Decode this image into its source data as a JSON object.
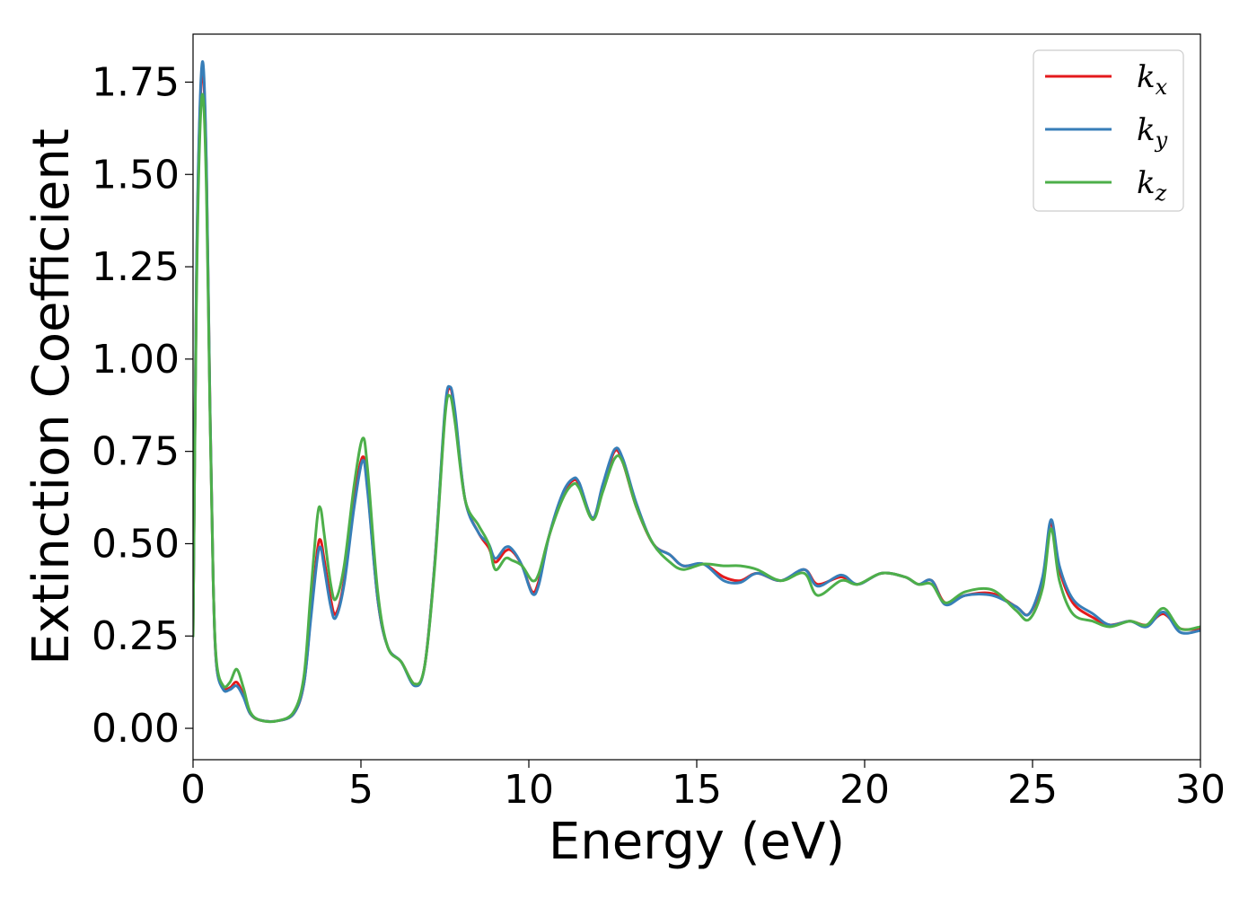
{
  "chart_data": {
    "type": "line",
    "title": "",
    "xlabel": "Energy (eV)",
    "ylabel": "Extinction Coefficient",
    "xlim": [
      0,
      30
    ],
    "ylim": [
      -0.085,
      1.88
    ],
    "xticks": [
      0,
      5,
      10,
      15,
      20,
      25,
      30
    ],
    "xtick_labels": [
      "0",
      "5",
      "10",
      "15",
      "20",
      "25",
      "30"
    ],
    "yticks": [
      0.0,
      0.25,
      0.5,
      0.75,
      1.0,
      1.25,
      1.5,
      1.75
    ],
    "ytick_labels": [
      "0.00",
      "0.25",
      "0.50",
      "0.75",
      "1.00",
      "1.25",
      "1.50",
      "1.75"
    ],
    "grid": false,
    "legend_position": "top-right",
    "series": [
      {
        "name": "k_x",
        "label_main": "k",
        "label_sub": "x",
        "color": "#e41a1c",
        "points": [
          [
            0,
            0.25
          ],
          [
            0.1,
            1.2
          ],
          [
            0.2,
            1.65
          ],
          [
            0.3,
            1.78
          ],
          [
            0.4,
            1.5
          ],
          [
            0.5,
            0.9
          ],
          [
            0.6,
            0.4
          ],
          [
            0.7,
            0.17
          ],
          [
            0.9,
            0.11
          ],
          [
            1.1,
            0.11
          ],
          [
            1.3,
            0.125
          ],
          [
            1.5,
            0.09
          ],
          [
            1.7,
            0.04
          ],
          [
            2.0,
            0.022
          ],
          [
            2.5,
            0.02
          ],
          [
            3.0,
            0.04
          ],
          [
            3.3,
            0.12
          ],
          [
            3.5,
            0.3
          ],
          [
            3.7,
            0.48
          ],
          [
            3.8,
            0.51
          ],
          [
            3.9,
            0.46
          ],
          [
            4.1,
            0.35
          ],
          [
            4.25,
            0.31
          ],
          [
            4.5,
            0.4
          ],
          [
            4.8,
            0.62
          ],
          [
            5.05,
            0.735
          ],
          [
            5.2,
            0.65
          ],
          [
            5.5,
            0.35
          ],
          [
            5.8,
            0.22
          ],
          [
            6.2,
            0.18
          ],
          [
            6.6,
            0.12
          ],
          [
            6.9,
            0.17
          ],
          [
            7.2,
            0.45
          ],
          [
            7.5,
            0.85
          ],
          [
            7.65,
            0.92
          ],
          [
            7.8,
            0.85
          ],
          [
            8.1,
            0.62
          ],
          [
            8.5,
            0.53
          ],
          [
            8.8,
            0.49
          ],
          [
            9.0,
            0.45
          ],
          [
            9.3,
            0.48
          ],
          [
            9.5,
            0.48
          ],
          [
            9.8,
            0.44
          ],
          [
            10.1,
            0.37
          ],
          [
            10.3,
            0.4
          ],
          [
            10.6,
            0.52
          ],
          [
            11.0,
            0.63
          ],
          [
            11.3,
            0.67
          ],
          [
            11.5,
            0.66
          ],
          [
            11.9,
            0.57
          ],
          [
            12.2,
            0.65
          ],
          [
            12.55,
            0.75
          ],
          [
            12.8,
            0.72
          ],
          [
            13.2,
            0.6
          ],
          [
            13.7,
            0.5
          ],
          [
            14.2,
            0.47
          ],
          [
            14.6,
            0.44
          ],
          [
            15.2,
            0.445
          ],
          [
            15.8,
            0.41
          ],
          [
            16.3,
            0.4
          ],
          [
            16.8,
            0.42
          ],
          [
            17.5,
            0.4
          ],
          [
            18.2,
            0.43
          ],
          [
            18.6,
            0.39
          ],
          [
            19.3,
            0.41
          ],
          [
            19.8,
            0.39
          ],
          [
            20.5,
            0.42
          ],
          [
            21.2,
            0.41
          ],
          [
            21.6,
            0.39
          ],
          [
            22.0,
            0.4
          ],
          [
            22.4,
            0.34
          ],
          [
            23.0,
            0.36
          ],
          [
            23.8,
            0.365
          ],
          [
            24.5,
            0.33
          ],
          [
            24.9,
            0.31
          ],
          [
            25.3,
            0.4
          ],
          [
            25.55,
            0.555
          ],
          [
            25.8,
            0.43
          ],
          [
            26.2,
            0.34
          ],
          [
            26.8,
            0.3
          ],
          [
            27.3,
            0.28
          ],
          [
            27.9,
            0.29
          ],
          [
            28.4,
            0.28
          ],
          [
            28.9,
            0.31
          ],
          [
            29.4,
            0.27
          ],
          [
            30,
            0.27
          ]
        ]
      },
      {
        "name": "k_y",
        "label_main": "k",
        "label_sub": "y",
        "color": "#377eb8",
        "points": [
          [
            0,
            0.25
          ],
          [
            0.1,
            1.22
          ],
          [
            0.2,
            1.67
          ],
          [
            0.3,
            1.8
          ],
          [
            0.4,
            1.52
          ],
          [
            0.5,
            0.9
          ],
          [
            0.6,
            0.4
          ],
          [
            0.7,
            0.17
          ],
          [
            0.9,
            0.105
          ],
          [
            1.1,
            0.105
          ],
          [
            1.3,
            0.115
          ],
          [
            1.5,
            0.085
          ],
          [
            1.7,
            0.04
          ],
          [
            2.0,
            0.022
          ],
          [
            2.5,
            0.02
          ],
          [
            3.0,
            0.04
          ],
          [
            3.3,
            0.12
          ],
          [
            3.5,
            0.29
          ],
          [
            3.7,
            0.46
          ],
          [
            3.8,
            0.49
          ],
          [
            3.9,
            0.44
          ],
          [
            4.1,
            0.33
          ],
          [
            4.25,
            0.3
          ],
          [
            4.5,
            0.39
          ],
          [
            4.8,
            0.6
          ],
          [
            5.05,
            0.725
          ],
          [
            5.2,
            0.64
          ],
          [
            5.5,
            0.35
          ],
          [
            5.8,
            0.22
          ],
          [
            6.2,
            0.18
          ],
          [
            6.6,
            0.115
          ],
          [
            6.9,
            0.17
          ],
          [
            7.2,
            0.45
          ],
          [
            7.5,
            0.86
          ],
          [
            7.65,
            0.925
          ],
          [
            7.8,
            0.86
          ],
          [
            8.1,
            0.62
          ],
          [
            8.5,
            0.53
          ],
          [
            8.8,
            0.5
          ],
          [
            9.0,
            0.46
          ],
          [
            9.3,
            0.49
          ],
          [
            9.5,
            0.485
          ],
          [
            9.8,
            0.44
          ],
          [
            10.1,
            0.365
          ],
          [
            10.3,
            0.39
          ],
          [
            10.6,
            0.52
          ],
          [
            11.0,
            0.635
          ],
          [
            11.3,
            0.675
          ],
          [
            11.5,
            0.665
          ],
          [
            11.9,
            0.57
          ],
          [
            12.2,
            0.66
          ],
          [
            12.55,
            0.755
          ],
          [
            12.8,
            0.73
          ],
          [
            13.2,
            0.61
          ],
          [
            13.7,
            0.5
          ],
          [
            14.2,
            0.47
          ],
          [
            14.6,
            0.44
          ],
          [
            15.2,
            0.445
          ],
          [
            15.8,
            0.4
          ],
          [
            16.3,
            0.395
          ],
          [
            16.8,
            0.42
          ],
          [
            17.5,
            0.4
          ],
          [
            18.2,
            0.43
          ],
          [
            18.6,
            0.385
          ],
          [
            19.3,
            0.415
          ],
          [
            19.8,
            0.39
          ],
          [
            20.5,
            0.42
          ],
          [
            21.2,
            0.41
          ],
          [
            21.6,
            0.39
          ],
          [
            22.0,
            0.4
          ],
          [
            22.4,
            0.335
          ],
          [
            23.0,
            0.36
          ],
          [
            23.8,
            0.36
          ],
          [
            24.5,
            0.33
          ],
          [
            24.9,
            0.31
          ],
          [
            25.3,
            0.41
          ],
          [
            25.55,
            0.565
          ],
          [
            25.8,
            0.44
          ],
          [
            26.2,
            0.35
          ],
          [
            26.8,
            0.31
          ],
          [
            27.3,
            0.28
          ],
          [
            27.9,
            0.29
          ],
          [
            28.4,
            0.275
          ],
          [
            28.9,
            0.315
          ],
          [
            29.4,
            0.26
          ],
          [
            30,
            0.265
          ]
        ]
      },
      {
        "name": "k_z",
        "label_main": "k",
        "label_sub": "z",
        "color": "#4daf4a",
        "points": [
          [
            0,
            0.25
          ],
          [
            0.1,
            1.15
          ],
          [
            0.2,
            1.6
          ],
          [
            0.3,
            1.71
          ],
          [
            0.4,
            1.45
          ],
          [
            0.5,
            0.88
          ],
          [
            0.6,
            0.4
          ],
          [
            0.7,
            0.18
          ],
          [
            0.9,
            0.115
          ],
          [
            1.1,
            0.125
          ],
          [
            1.3,
            0.16
          ],
          [
            1.5,
            0.11
          ],
          [
            1.7,
            0.045
          ],
          [
            2.0,
            0.022
          ],
          [
            2.5,
            0.02
          ],
          [
            3.0,
            0.045
          ],
          [
            3.3,
            0.14
          ],
          [
            3.5,
            0.36
          ],
          [
            3.7,
            0.57
          ],
          [
            3.8,
            0.595
          ],
          [
            3.9,
            0.53
          ],
          [
            4.1,
            0.39
          ],
          [
            4.25,
            0.35
          ],
          [
            4.5,
            0.44
          ],
          [
            4.8,
            0.66
          ],
          [
            5.05,
            0.785
          ],
          [
            5.2,
            0.7
          ],
          [
            5.5,
            0.37
          ],
          [
            5.8,
            0.22
          ],
          [
            6.2,
            0.18
          ],
          [
            6.6,
            0.12
          ],
          [
            6.9,
            0.17
          ],
          [
            7.2,
            0.44
          ],
          [
            7.5,
            0.84
          ],
          [
            7.65,
            0.9
          ],
          [
            7.8,
            0.83
          ],
          [
            8.1,
            0.62
          ],
          [
            8.5,
            0.55
          ],
          [
            8.8,
            0.5
          ],
          [
            9.0,
            0.43
          ],
          [
            9.3,
            0.46
          ],
          [
            9.5,
            0.455
          ],
          [
            9.8,
            0.44
          ],
          [
            10.1,
            0.4
          ],
          [
            10.3,
            0.42
          ],
          [
            10.6,
            0.52
          ],
          [
            11.0,
            0.62
          ],
          [
            11.3,
            0.66
          ],
          [
            11.5,
            0.65
          ],
          [
            11.9,
            0.565
          ],
          [
            12.2,
            0.64
          ],
          [
            12.55,
            0.73
          ],
          [
            12.8,
            0.72
          ],
          [
            13.2,
            0.6
          ],
          [
            13.7,
            0.5
          ],
          [
            14.2,
            0.45
          ],
          [
            14.6,
            0.43
          ],
          [
            15.2,
            0.445
          ],
          [
            15.8,
            0.44
          ],
          [
            16.3,
            0.44
          ],
          [
            16.8,
            0.43
          ],
          [
            17.5,
            0.4
          ],
          [
            18.2,
            0.42
          ],
          [
            18.6,
            0.36
          ],
          [
            19.3,
            0.4
          ],
          [
            19.8,
            0.39
          ],
          [
            20.5,
            0.42
          ],
          [
            21.2,
            0.41
          ],
          [
            21.6,
            0.39
          ],
          [
            22.0,
            0.39
          ],
          [
            22.4,
            0.34
          ],
          [
            23.0,
            0.37
          ],
          [
            23.8,
            0.375
          ],
          [
            24.5,
            0.32
          ],
          [
            24.9,
            0.295
          ],
          [
            25.3,
            0.38
          ],
          [
            25.55,
            0.54
          ],
          [
            25.8,
            0.4
          ],
          [
            26.2,
            0.31
          ],
          [
            26.8,
            0.29
          ],
          [
            27.3,
            0.275
          ],
          [
            27.9,
            0.29
          ],
          [
            28.4,
            0.28
          ],
          [
            28.9,
            0.325
          ],
          [
            29.4,
            0.27
          ],
          [
            30,
            0.275
          ]
        ]
      }
    ]
  }
}
